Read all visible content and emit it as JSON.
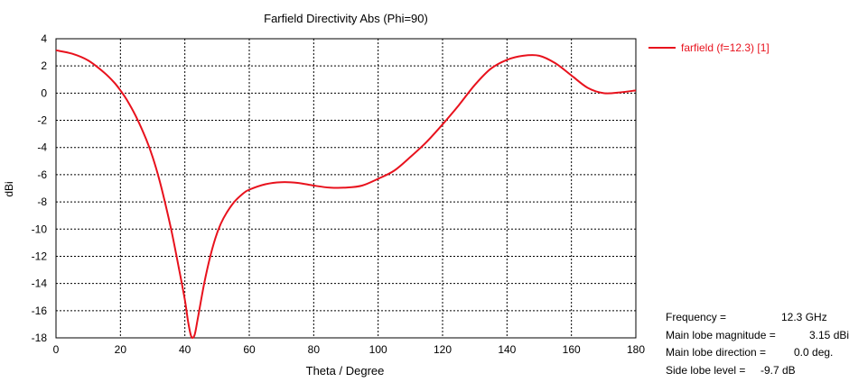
{
  "chart_data": {
    "type": "line",
    "title": "Farfield Directivity Abs (Phi=90)",
    "xlabel": "Theta / Degree",
    "ylabel": "dBi",
    "xlim": [
      0,
      180
    ],
    "ylim": [
      -18,
      4
    ],
    "xticks": [
      0,
      20,
      40,
      60,
      80,
      100,
      120,
      140,
      160,
      180
    ],
    "yticks": [
      4,
      2,
      0,
      -2,
      -4,
      -6,
      -8,
      -10,
      -12,
      -14,
      -16,
      -18
    ],
    "grid": true,
    "grid_style": "dotted",
    "legend_position": "outside-top-right",
    "series": [
      {
        "name": "farfield (f=12.3) [1]",
        "color": "#e8121d",
        "x": [
          0,
          5,
          10,
          15,
          18,
          20,
          22,
          25,
          28,
          30,
          32,
          34,
          36,
          38,
          40,
          41,
          42,
          43,
          44,
          46,
          48,
          50,
          52,
          55,
          58,
          60,
          65,
          70,
          75,
          80,
          85,
          90,
          95,
          100,
          105,
          110,
          115,
          120,
          125,
          130,
          135,
          140,
          145,
          150,
          155,
          160,
          165,
          170,
          175,
          180
        ],
        "y": [
          3.15,
          2.9,
          2.4,
          1.5,
          0.8,
          0.2,
          -0.5,
          -1.8,
          -3.4,
          -4.7,
          -6.3,
          -8.2,
          -10.3,
          -12.7,
          -15.2,
          -16.8,
          -17.9,
          -17.8,
          -16.6,
          -14.0,
          -11.9,
          -10.3,
          -9.2,
          -8.1,
          -7.4,
          -7.1,
          -6.7,
          -6.55,
          -6.6,
          -6.8,
          -6.95,
          -6.95,
          -6.8,
          -6.3,
          -5.7,
          -4.7,
          -3.6,
          -2.3,
          -0.9,
          0.6,
          1.8,
          2.45,
          2.75,
          2.75,
          2.2,
          1.3,
          0.4,
          0.0,
          0.05,
          0.2
        ]
      }
    ]
  },
  "info": {
    "lines": [
      {
        "key": "Frequency = ",
        "value": "12.3 GHz"
      },
      {
        "key": "Main lobe magnitude = ",
        "value": "3.15 dBi"
      },
      {
        "key": "Main lobe direction = ",
        "value": "0.0 deg."
      },
      {
        "key": "Side lobe level = ",
        "value": "-9.7 dB"
      }
    ]
  }
}
